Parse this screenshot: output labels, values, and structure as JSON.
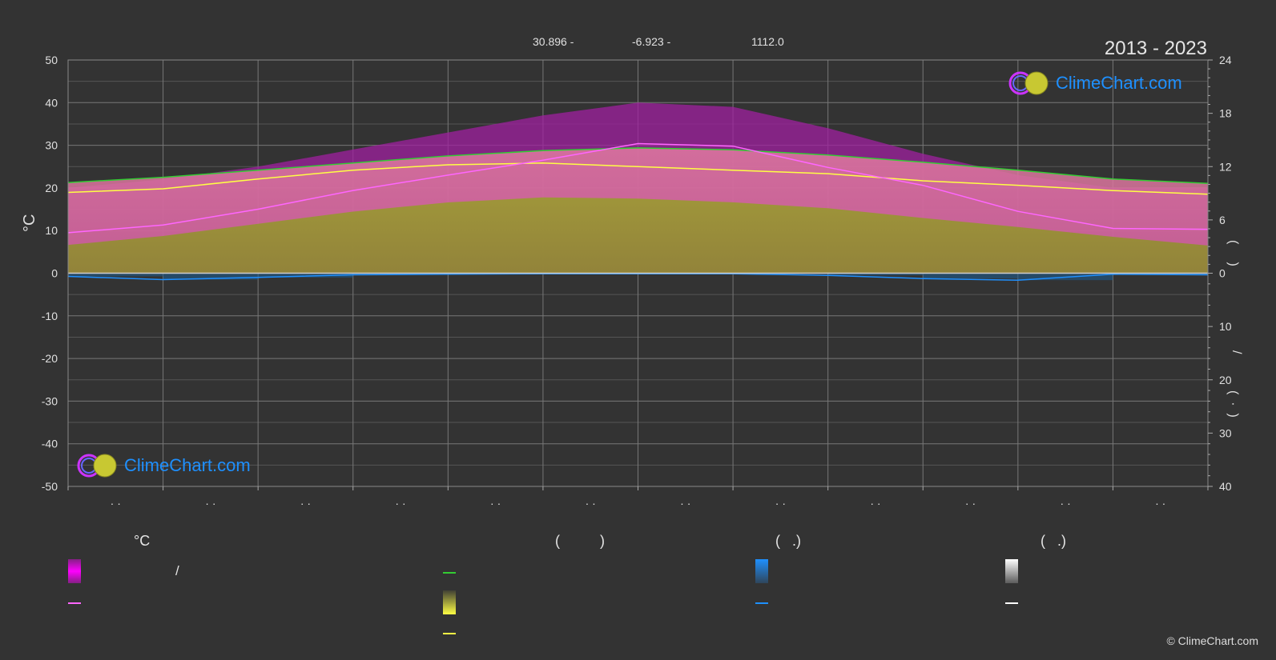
{
  "header": {
    "coords": [
      "30.896 -",
      "-6.923 -",
      "1112.0"
    ],
    "period": "2013 - 2023"
  },
  "axes": {
    "left_unit": "°C",
    "right_top_paren": "(     )",
    "right_slash": "/",
    "right_bottom_paren": "(  ·  )"
  },
  "month_label": "· ·",
  "brand": "ClimeChart.com",
  "copyright": "© ClimeChart.com",
  "legend": {
    "col1_header": "°C",
    "col1_slash": "/",
    "col2_header": "(          )",
    "col3_header": "(   .)",
    "col4_header": "(   .)"
  },
  "colors": {
    "background": "#333333",
    "temp_range": "#e100e1",
    "daylight": "#33cc33",
    "sunshine_band": "#cccc33",
    "sunshine_line": "#ffff44",
    "avg_temp": "#ff66ff",
    "rain": "#1e78c8",
    "snow": "#ffffff"
  },
  "chart_data": {
    "type": "area",
    "months": 12,
    "left_axis": {
      "unit": "°C",
      "ylim": [
        -50,
        50
      ],
      "ticks": [
        50,
        40,
        30,
        20,
        10,
        0,
        -10,
        -20,
        -30,
        -40,
        -50
      ]
    },
    "right_axis_top": {
      "ylim": [
        0,
        24
      ],
      "ticks": [
        24,
        18,
        12,
        6,
        0
      ]
    },
    "right_axis_bottom": {
      "ylim": [
        0,
        40
      ],
      "ticks": [
        0,
        10,
        20,
        30,
        40
      ]
    },
    "series": [
      {
        "key": "daylight_hours",
        "axis": "right_top",
        "values": [
          10.2,
          10.8,
          11.6,
          12.4,
          13.2,
          13.8,
          14.1,
          13.9,
          13.3,
          12.5,
          11.6,
          10.6,
          10.1
        ]
      },
      {
        "key": "sunshine_hours",
        "axis": "right_top",
        "values": [
          9.1,
          9.5,
          10.6,
          11.6,
          12.2,
          12.4,
          12.0,
          11.6,
          11.2,
          10.4,
          9.9,
          9.3,
          8.9
        ]
      },
      {
        "key": "avg_temperature",
        "axis": "left",
        "values": [
          9.5,
          11.3,
          15.0,
          19.4,
          23.0,
          26.5,
          30.4,
          29.8,
          24.8,
          20.6,
          14.5,
          10.5,
          10.3
        ]
      },
      {
        "key": "temp_max",
        "axis": "left",
        "values": [
          20,
          22,
          25,
          29,
          33,
          37,
          40,
          39,
          34,
          28,
          23,
          20,
          20
        ]
      },
      {
        "key": "temp_min",
        "axis": "left",
        "values": [
          0,
          0,
          0,
          0,
          0,
          0,
          0,
          0,
          0,
          0,
          0,
          0,
          0
        ]
      },
      {
        "key": "rain_daily",
        "axis": "right_bottom",
        "values": [
          0.6,
          1.2,
          0.8,
          0.3,
          0.2,
          0.1,
          0.1,
          0.1,
          0.4,
          1.0,
          1.3,
          0.2,
          0.3
        ]
      },
      {
        "key": "snow_daily",
        "axis": "right_bottom",
        "values": [
          0.1,
          0.1,
          0,
          0,
          0,
          0,
          0,
          0,
          0,
          0,
          0,
          0,
          0.1
        ]
      }
    ]
  }
}
